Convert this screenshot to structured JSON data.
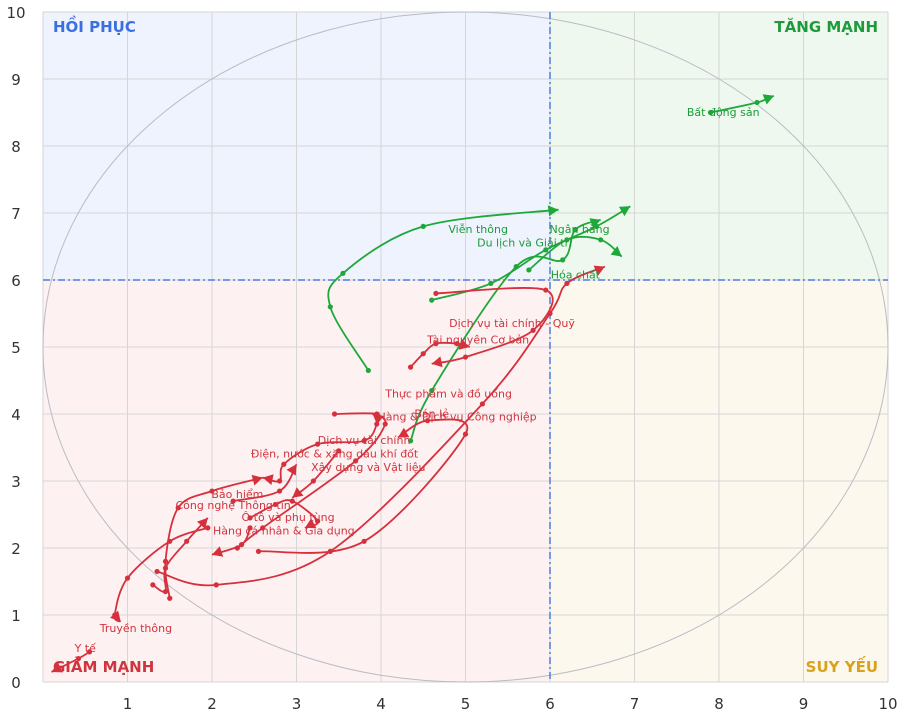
{
  "chart_data": {
    "type": "scatter",
    "title": "",
    "xlabel": "",
    "ylabel": "",
    "xlim": [
      0,
      10
    ],
    "ylim": [
      0,
      10
    ],
    "xticks": [
      "1",
      "2",
      "3",
      "4",
      "5",
      "6",
      "7",
      "8",
      "9",
      "10"
    ],
    "yticks": [
      "0",
      "1",
      "2",
      "3",
      "4",
      "5",
      "6",
      "7",
      "8",
      "9",
      "10"
    ],
    "grid": true,
    "thresholds": {
      "x": 6,
      "y": 6
    },
    "quadrants": [
      {
        "key": "top-left",
        "label": "HỒI PHỤC",
        "color": "#3b6fe0",
        "bg": "#eef3fd"
      },
      {
        "key": "top-right",
        "label": "TĂNG MẠNH",
        "color": "#1d9a3a",
        "bg": "#eef8ef"
      },
      {
        "key": "bottom-left",
        "label": "GIẢM MẠNH",
        "color": "#d0353f",
        "bg": "#fdf1f2"
      },
      {
        "key": "bottom-right",
        "label": "SUY YẾU",
        "color": "#d9a21b",
        "bg": "#fdf8ee"
      }
    ],
    "colors": {
      "green": "#1ea83a",
      "red": "#d6303d",
      "threshold": "#4a7fe0"
    },
    "series": [
      {
        "name": "Bất động sản",
        "color": "#1ea83a",
        "points": [
          [
            7.9,
            8.5
          ],
          [
            8.45,
            8.65
          ],
          [
            8.65,
            8.75
          ]
        ]
      },
      {
        "name": "Viễn thông",
        "color": "#1ea83a",
        "points": [
          [
            3.85,
            4.65
          ],
          [
            3.4,
            5.6
          ],
          [
            3.55,
            6.1
          ],
          [
            4.5,
            6.8
          ],
          [
            6.1,
            7.05
          ]
        ]
      },
      {
        "name": "Ngân hàng",
        "color": "#1ea83a",
        "points": [
          [
            4.6,
            5.7
          ],
          [
            5.3,
            5.95
          ],
          [
            5.95,
            6.45
          ],
          [
            6.55,
            6.8
          ],
          [
            6.95,
            7.1
          ]
        ]
      },
      {
        "name": "Du lịch và Giải trí",
        "color": "#1ea83a",
        "points": [
          [
            5.75,
            6.15
          ],
          [
            6.2,
            6.6
          ],
          [
            6.6,
            6.6
          ],
          [
            6.85,
            6.35
          ]
        ]
      },
      {
        "name": "Hóa chất",
        "color": "#1ea83a",
        "points": [
          [
            4.35,
            3.6
          ],
          [
            4.6,
            4.35
          ],
          [
            5.6,
            6.2
          ],
          [
            6.15,
            6.3
          ],
          [
            6.3,
            6.75
          ],
          [
            6.6,
            6.9
          ]
        ]
      },
      {
        "name": "Dịch vụ tài chính - Quỹ",
        "color": "#d6303d",
        "points": [
          [
            4.65,
            5.8
          ],
          [
            5.95,
            5.85
          ],
          [
            5.8,
            5.25
          ],
          [
            5.0,
            4.85
          ],
          [
            4.6,
            4.75
          ]
        ]
      },
      {
        "name": "Tài nguyên Cơ bản",
        "color": "#d6303d",
        "points": [
          [
            4.35,
            4.7
          ],
          [
            4.5,
            4.9
          ],
          [
            4.65,
            5.05
          ],
          [
            4.9,
            5.05
          ],
          [
            5.05,
            5.0
          ]
        ]
      },
      {
        "name": "Thực phẩm và đồ uống",
        "color": "#d6303d",
        "points": [
          [
            1.35,
            1.65
          ],
          [
            2.05,
            1.45
          ],
          [
            3.4,
            1.95
          ],
          [
            5.2,
            4.15
          ],
          [
            6.0,
            5.5
          ],
          [
            6.2,
            5.95
          ],
          [
            6.65,
            6.2
          ]
        ]
      },
      {
        "name": "Bán lẻ",
        "color": "#d6303d",
        "points": [
          [
            2.3,
            2.0
          ],
          [
            2.6,
            2.3
          ],
          [
            3.7,
            3.3
          ],
          [
            4.05,
            3.85
          ],
          [
            3.9,
            4.0
          ]
        ]
      },
      {
        "name": "Hàng & Dịch vụ Công nghiệp",
        "color": "#d6303d",
        "points": [
          [
            2.55,
            1.95
          ],
          [
            3.8,
            2.1
          ],
          [
            5.0,
            3.7
          ],
          [
            4.55,
            3.9
          ],
          [
            4.2,
            3.65
          ]
        ]
      },
      {
        "name": "Dịch vụ tài chính",
        "color": "#d6303d",
        "points": [
          [
            3.45,
            4.0
          ],
          [
            3.95,
            4.0
          ],
          [
            3.95,
            3.85
          ],
          [
            3.8,
            3.6
          ],
          [
            3.25,
            3.55
          ],
          [
            2.85,
            3.25
          ],
          [
            2.8,
            3.0
          ],
          [
            2.6,
            3.05
          ]
        ]
      },
      {
        "name": "Điện, nước & xăng dầu khí đốt",
        "color": "#d6303d",
        "points": [
          [
            2.25,
            2.7
          ],
          [
            2.8,
            2.85
          ],
          [
            3.0,
            3.25
          ]
        ]
      },
      {
        "name": "Xây dựng và Vật liệu",
        "color": "#d6303d",
        "points": [
          [
            3.5,
            3.45
          ],
          [
            3.2,
            3.0
          ],
          [
            2.95,
            2.75
          ]
        ]
      },
      {
        "name": "Bảo hiểm",
        "color": "#d6303d",
        "points": [
          [
            1.5,
            1.25
          ],
          [
            1.45,
            1.8
          ],
          [
            1.6,
            2.6
          ],
          [
            2.0,
            2.85
          ],
          [
            2.6,
            3.05
          ]
        ]
      },
      {
        "name": "Công nghệ Thông tin",
        "color": "#d6303d",
        "points": [
          [
            1.3,
            1.45
          ],
          [
            1.45,
            1.35
          ],
          [
            1.45,
            1.7
          ],
          [
            1.7,
            2.1
          ],
          [
            1.95,
            2.45
          ]
        ]
      },
      {
        "name": "Ô tô và phụ tùng",
        "color": "#d6303d",
        "points": [
          [
            2.45,
            2.45
          ],
          [
            2.75,
            2.65
          ],
          [
            2.95,
            2.7
          ],
          [
            3.25,
            2.4
          ],
          [
            3.1,
            2.3
          ]
        ]
      },
      {
        "name": "Hàng cá nhân & Gia dụng",
        "color": "#d6303d",
        "points": [
          [
            2.45,
            2.3
          ],
          [
            2.35,
            2.05
          ],
          [
            2.0,
            1.9
          ]
        ]
      },
      {
        "name": "Truyền thông",
        "color": "#d6303d",
        "points": [
          [
            1.95,
            2.3
          ],
          [
            1.5,
            2.1
          ],
          [
            1.0,
            1.55
          ],
          [
            0.85,
            1.0
          ],
          [
            0.92,
            0.9
          ]
        ]
      },
      {
        "name": "Y tế",
        "color": "#d6303d",
        "points": [
          [
            0.55,
            0.45
          ],
          [
            0.42,
            0.35
          ],
          [
            0.1,
            0.15
          ]
        ]
      }
    ],
    "labels": [
      {
        "text": "Bất động sản",
        "x": 8.05,
        "y": 8.45,
        "color": "#1d9a3a"
      },
      {
        "text": "Viễn thông",
        "x": 5.15,
        "y": 6.7,
        "color": "#1d9a3a"
      },
      {
        "text": "Ngân hàng",
        "x": 6.35,
        "y": 6.7,
        "color": "#1d9a3a"
      },
      {
        "text": "Du lịch và Giải trí",
        "x": 5.7,
        "y": 6.5,
        "color": "#1d9a3a"
      },
      {
        "text": "Hóa chất",
        "x": 6.3,
        "y": 6.02,
        "color": "#1d9a3a"
      },
      {
        "text": "Dịch vụ tài chính - Quỹ",
        "x": 5.55,
        "y": 5.3,
        "color": "#d0353f"
      },
      {
        "text": "Tài nguyên Cơ bản",
        "x": 5.15,
        "y": 5.05,
        "color": "#d0353f"
      },
      {
        "text": "Thực phẩm và đồ uống",
        "x": 4.8,
        "y": 4.25,
        "color": "#d0353f"
      },
      {
        "text": "Bán lẻ",
        "x": 4.6,
        "y": 3.95,
        "color": "#d0353f"
      },
      {
        "text": "Hàng & Dịch vụ Công nghiệp",
        "x": 4.9,
        "y": 3.9,
        "color": "#d0353f"
      },
      {
        "text": "Dịch vụ tài chính",
        "x": 3.8,
        "y": 3.55,
        "color": "#d0353f"
      },
      {
        "text": "Điện, nước & xăng dầu khí đốt",
        "x": 3.45,
        "y": 3.35,
        "color": "#d0353f"
      },
      {
        "text": "Xây dựng và Vật liệu",
        "x": 3.85,
        "y": 3.15,
        "color": "#d0353f"
      },
      {
        "text": "Bảo hiểm",
        "x": 2.3,
        "y": 2.75,
        "color": "#d0353f"
      },
      {
        "text": "Công nghệ Thông tin",
        "x": 2.25,
        "y": 2.58,
        "color": "#d0353f"
      },
      {
        "text": "Ô tô và phụ tùng",
        "x": 2.9,
        "y": 2.4,
        "color": "#d0353f"
      },
      {
        "text": "Hàng cá nhân & Gia dụng",
        "x": 2.85,
        "y": 2.2,
        "color": "#d0353f"
      },
      {
        "text": "Truyền thông",
        "x": 1.1,
        "y": 0.75,
        "color": "#d0353f"
      },
      {
        "text": "Y tế",
        "x": 0.5,
        "y": 0.45,
        "color": "#d0353f"
      }
    ]
  }
}
